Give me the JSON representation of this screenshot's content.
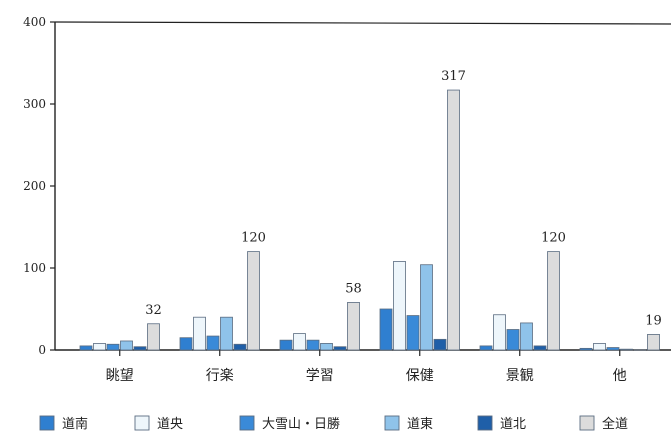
{
  "chart_data": {
    "type": "bar",
    "categories": [
      "眺望",
      "行楽",
      "学習",
      "保健",
      "景観",
      "他"
    ],
    "ylim": [
      0,
      400
    ],
    "yticks": [
      0,
      100,
      200,
      300,
      400
    ],
    "grid": false,
    "legend_position": "bottom",
    "series": [
      {
        "name": "道南",
        "color": "#2f7fd0",
        "values": [
          5,
          15,
          12,
          50,
          5,
          2
        ]
      },
      {
        "name": "道央",
        "color": "#eef6fb",
        "values": [
          8,
          40,
          20,
          108,
          43,
          8
        ]
      },
      {
        "name": "大雪山・日勝",
        "color": "#3a8ad8",
        "values": [
          7,
          17,
          12,
          42,
          25,
          3
        ]
      },
      {
        "name": "道東",
        "color": "#8fc3ea",
        "values": [
          11,
          40,
          8,
          104,
          33,
          1
        ]
      },
      {
        "name": "道北",
        "color": "#1f5fa8",
        "values": [
          4,
          7,
          4,
          13,
          5,
          0
        ]
      },
      {
        "name": "全道",
        "color": "#dcdcdc",
        "values": [
          32,
          120,
          58,
          317,
          120,
          19
        ]
      }
    ],
    "data_labels": {
      "series": "全道",
      "values": [
        32,
        120,
        58,
        317,
        120,
        19
      ]
    }
  }
}
